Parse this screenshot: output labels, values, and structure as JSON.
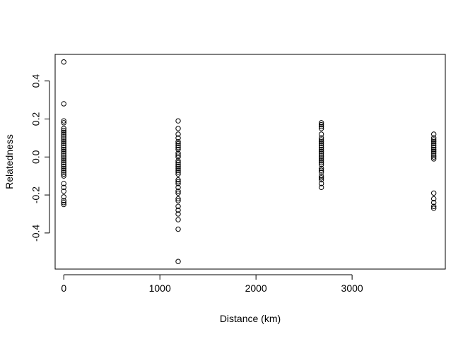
{
  "chart_data": {
    "type": "scatter",
    "title": "",
    "xlabel": "Distance (km)",
    "ylabel": "Relatedness",
    "xlim": [
      -90,
      3970
    ],
    "ylim": [
      -0.59,
      0.54
    ],
    "x_ticks": [
      0,
      1000,
      2000,
      3000
    ],
    "x_tick_labels": [
      "0",
      "1000",
      "2000",
      "3000"
    ],
    "y_ticks": [
      -0.4,
      -0.2,
      0.0,
      0.2,
      0.4
    ],
    "y_tick_labels": [
      "-0.4",
      "-0.2",
      "0.0",
      "0.2",
      "0.4"
    ],
    "grid": false,
    "marker": "open-circle",
    "marker_color": "#000000",
    "series": [
      {
        "x": 0,
        "y": [
          0.5,
          0.28,
          0.19,
          0.18,
          0.15,
          0.14,
          0.13,
          0.12,
          0.11,
          0.1,
          0.09,
          0.08,
          0.07,
          0.06,
          0.05,
          0.04,
          0.03,
          0.02,
          0.01,
          0.0,
          -0.01,
          -0.02,
          -0.03,
          -0.04,
          -0.05,
          -0.06,
          -0.07,
          -0.08,
          -0.09,
          -0.1,
          -0.14,
          -0.16,
          -0.18,
          -0.21,
          -0.23,
          -0.24,
          -0.25
        ]
      },
      {
        "x": 1190,
        "y": [
          0.19,
          0.15,
          0.12,
          0.1,
          0.08,
          0.07,
          0.06,
          0.05,
          0.04,
          0.02,
          0.01,
          0.0,
          -0.02,
          -0.03,
          -0.04,
          -0.05,
          -0.06,
          -0.07,
          -0.08,
          -0.09,
          -0.12,
          -0.13,
          -0.14,
          -0.16,
          -0.18,
          -0.19,
          -0.22,
          -0.23,
          -0.26,
          -0.28,
          -0.3,
          -0.33,
          -0.38,
          -0.55
        ]
      },
      {
        "x": 2680,
        "y": [
          0.18,
          0.17,
          0.16,
          0.15,
          0.12,
          0.1,
          0.09,
          0.08,
          0.07,
          0.06,
          0.05,
          0.04,
          0.03,
          0.02,
          0.01,
          0.0,
          -0.01,
          -0.02,
          -0.03,
          -0.04,
          -0.06,
          -0.07,
          -0.08,
          -0.1,
          -0.11,
          -0.12,
          -0.14,
          -0.16
        ]
      },
      {
        "x": 3850,
        "y": [
          0.12,
          0.1,
          0.09,
          0.08,
          0.07,
          0.06,
          0.05,
          0.04,
          0.03,
          0.02,
          0.01,
          0.0,
          -0.01,
          -0.19,
          -0.22,
          -0.24,
          -0.26,
          -0.27
        ]
      }
    ]
  }
}
